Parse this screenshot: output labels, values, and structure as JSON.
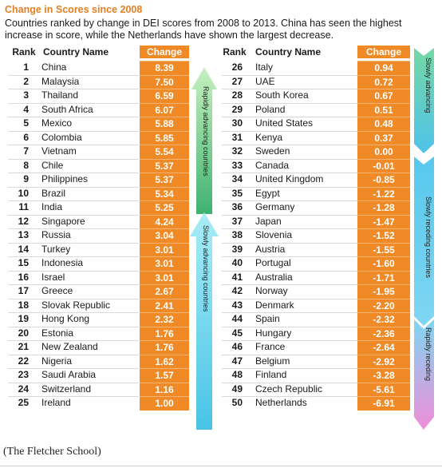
{
  "chart_data": {
    "type": "table",
    "title": "Change in Scores since 2008",
    "subtitle": "Countries ranked by change in DEI scores from 2008 to 2013.  China has seen the highest increase in score, while the Netherlands have shown the largest decrease.",
    "columns": [
      "Rank",
      "Country Name",
      "Change"
    ],
    "rows_left": [
      {
        "rank": "1",
        "country": "China",
        "change": "8.39"
      },
      {
        "rank": "2",
        "country": "Malaysia",
        "change": "7.50"
      },
      {
        "rank": "3",
        "country": "Thailand",
        "change": "6.59"
      },
      {
        "rank": "4",
        "country": "South Africa",
        "change": "6.07"
      },
      {
        "rank": "5",
        "country": "Mexico",
        "change": "5.88"
      },
      {
        "rank": "6",
        "country": "Colombia",
        "change": "5.85"
      },
      {
        "rank": "7",
        "country": "Vietnam",
        "change": "5.54"
      },
      {
        "rank": "8",
        "country": "Chile",
        "change": "5.37"
      },
      {
        "rank": "9",
        "country": "Philippines",
        "change": "5.37"
      },
      {
        "rank": "10",
        "country": "Brazil",
        "change": "5.34"
      },
      {
        "rank": "11",
        "country": "India",
        "change": "5.25"
      },
      {
        "rank": "12",
        "country": "Singapore",
        "change": "4.24"
      },
      {
        "rank": "13",
        "country": "Russia",
        "change": "3.04"
      },
      {
        "rank": "14",
        "country": "Turkey",
        "change": "3.01"
      },
      {
        "rank": "15",
        "country": "Indonesia",
        "change": "3.01"
      },
      {
        "rank": "16",
        "country": "Israel",
        "change": "3.01"
      },
      {
        "rank": "17",
        "country": "Greece",
        "change": "2.67"
      },
      {
        "rank": "18",
        "country": "Slovak Republic",
        "change": "2.41"
      },
      {
        "rank": "19",
        "country": "Hong Kong",
        "change": "2.32"
      },
      {
        "rank": "20",
        "country": "Estonia",
        "change": "1.76"
      },
      {
        "rank": "21",
        "country": "New Zealand",
        "change": "1.76"
      },
      {
        "rank": "22",
        "country": "Nigeria",
        "change": "1.62"
      },
      {
        "rank": "23",
        "country": "Saudi Arabia",
        "change": "1.57"
      },
      {
        "rank": "24",
        "country": "Switzerland",
        "change": "1.16"
      },
      {
        "rank": "25",
        "country": "Ireland",
        "change": "1.00"
      }
    ],
    "rows_right": [
      {
        "rank": "26",
        "country": "Italy",
        "change": "0.94"
      },
      {
        "rank": "27",
        "country": "UAE",
        "change": "0.72"
      },
      {
        "rank": "28",
        "country": "South Korea",
        "change": "0.67"
      },
      {
        "rank": "29",
        "country": "Poland",
        "change": "0.51"
      },
      {
        "rank": "30",
        "country": "United States",
        "change": "0.48"
      },
      {
        "rank": "31",
        "country": "Kenya",
        "change": "0.37"
      },
      {
        "rank": "32",
        "country": "Sweden",
        "change": "0.00"
      },
      {
        "rank": "33",
        "country": "Canada",
        "change": "-0.01"
      },
      {
        "rank": "34",
        "country": "United Kingdom",
        "change": "-0.85"
      },
      {
        "rank": "35",
        "country": "Egypt",
        "change": "-1.22"
      },
      {
        "rank": "36",
        "country": "Germany",
        "change": "-1.28"
      },
      {
        "rank": "37",
        "country": "Japan",
        "change": "-1.47"
      },
      {
        "rank": "38",
        "country": "Slovenia",
        "change": "-1.52"
      },
      {
        "rank": "39",
        "country": "Austria",
        "change": "-1.55"
      },
      {
        "rank": "40",
        "country": "Portugal",
        "change": "-1.60"
      },
      {
        "rank": "41",
        "country": "Australia",
        "change": "-1.71"
      },
      {
        "rank": "42",
        "country": "Norway",
        "change": "-1.95"
      },
      {
        "rank": "43",
        "country": "Denmark",
        "change": "-2.20"
      },
      {
        "rank": "44",
        "country": "Spain",
        "change": "-2.32"
      },
      {
        "rank": "45",
        "country": "Hungary",
        "change": "-2.36"
      },
      {
        "rank": "46",
        "country": "France",
        "change": "-2.64"
      },
      {
        "rank": "47",
        "country": "Belgium",
        "change": "-2.92"
      },
      {
        "rank": "48",
        "country": "Finland",
        "change": "-3.28"
      },
      {
        "rank": "49",
        "country": "Czech Republic",
        "change": "-5.61"
      },
      {
        "rank": "50",
        "country": "Netherlands",
        "change": "-6.91"
      }
    ],
    "category_labels": {
      "rapidly_advancing": "Rapidly advancing countries",
      "slowly_advancing_left": "Slowly advancing countries",
      "slowly_advancing_right": "Slowly advancing",
      "slowly_receding": "Slowly receding countries",
      "rapidly_receding": "Rapidly receding"
    },
    "colors": {
      "title": "#e37f22",
      "change_cell": "#ef8a26",
      "rapid_advance": "#5ec08a",
      "slow_advance": "#6dcfe6",
      "slow_recede": "#5fc8e8",
      "rapid_recede": "#e58ad0"
    }
  },
  "caption": "(The Fletcher School)"
}
